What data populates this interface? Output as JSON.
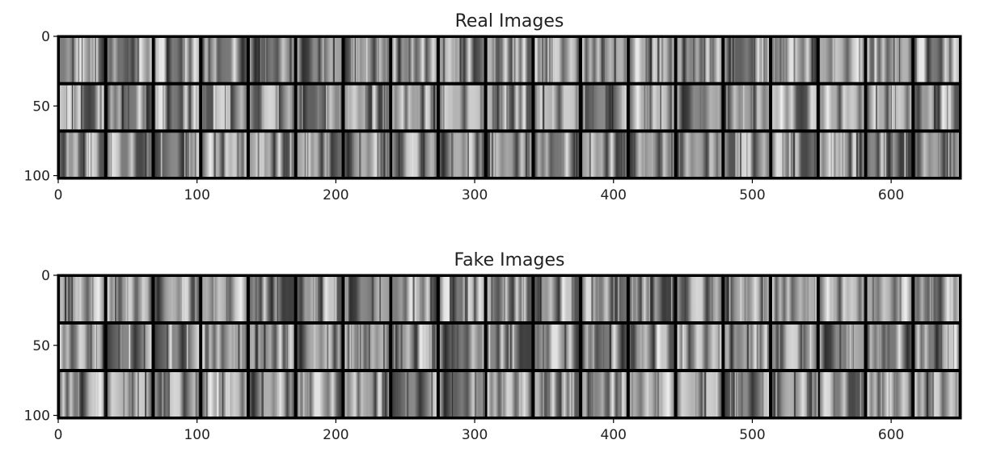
{
  "chart_data": [
    {
      "type": "image_grid",
      "title": "Real Images",
      "xlim": [
        0,
        650
      ],
      "ylim": [
        102,
        0
      ],
      "xticks": [
        "0",
        "100",
        "200",
        "300",
        "400",
        "500",
        "600"
      ],
      "yticks": [
        "0",
        "50",
        "100"
      ],
      "grid": {
        "rows": 3,
        "cols": 19
      },
      "style": "grayscale vertical-streak texture tiles"
    },
    {
      "type": "image_grid",
      "title": "Fake Images",
      "xlim": [
        0,
        650
      ],
      "ylim": [
        102,
        0
      ],
      "xticks": [
        "0",
        "100",
        "200",
        "300",
        "400",
        "500",
        "600"
      ],
      "yticks": [
        "0",
        "50",
        "100"
      ],
      "grid": {
        "rows": 3,
        "cols": 19
      },
      "style": "grayscale vertical-streak texture tiles"
    }
  ],
  "colors": {
    "grid_border": "#000000",
    "axes": "#000000",
    "text": "#222222"
  }
}
